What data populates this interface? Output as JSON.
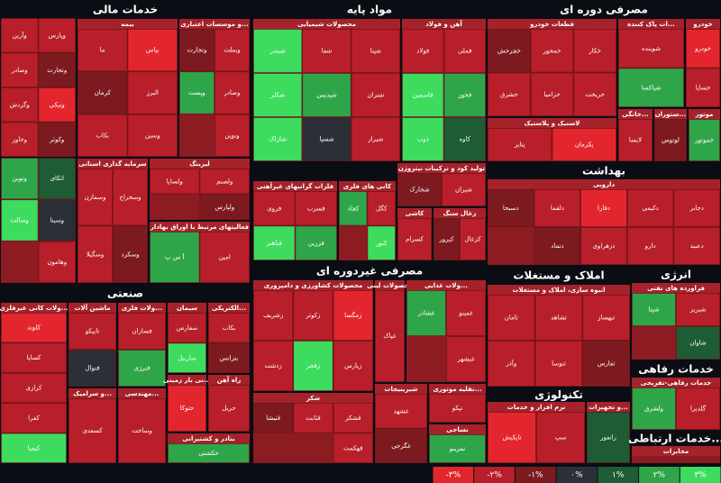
{
  "sectors": [
    {
      "title": "خدمات مالی",
      "groups": [
        {
          "tiles": [
            {
              "name": "وپارس",
              "color": "#b81f2a"
            },
            {
              "name": "وآرین",
              "color": "#b81f2a"
            },
            {
              "name": "وتجارت",
              "color": "#7d1a20"
            },
            {
              "name": "وصادر",
              "color": "#b81f2a"
            },
            {
              "name": "ونیکی",
              "color": "#e3262d"
            },
            {
              "name": "وگردش",
              "color": "#b81f2a"
            },
            {
              "name": "وکوثر",
              "color": "#7d1a20"
            },
            {
              "name": "وخاور",
              "color": "#b81f2a"
            }
          ]
        },
        {
          "tiles": [
            {
              "name": "اتکای",
              "color": "#1d5c34"
            },
            {
              "name": "ونوین",
              "color": "#2fa54a"
            },
            {
              "name": "وسینا",
              "color": "#2b2f36"
            },
            {
              "name": "وسالت",
              "color": "#3ddc5f"
            },
            {
              "name": "وهامون",
              "color": "#b81f2a"
            }
          ]
        },
        {
          "title": "بیمه",
          "tiles": [
            {
              "name": "بپاس",
              "color": "#e3262d"
            },
            {
              "name": "ما",
              "color": "#b81f2a"
            },
            {
              "name": "البرز",
              "color": "#b81f2a"
            },
            {
              "name": "کرمان",
              "color": "#7d1a20"
            },
            {
              "name": "وسین",
              "color": "#b81f2a"
            },
            {
              "name": "بکاب",
              "color": "#b81f2a"
            }
          ]
        },
        {
          "title": "...و موسسات اعتباری",
          "tiles": [
            {
              "name": "وبملت",
              "color": "#b81f2a"
            },
            {
              "name": "وتجارت",
              "color": "#7d1a20"
            },
            {
              "name": "وصادر",
              "color": "#b81f2a"
            },
            {
              "name": "وپست",
              "color": "#2fa54a"
            },
            {
              "name": "ونوین",
              "color": "#b81f2a"
            }
          ]
        },
        {
          "title": "سرمایه گذاری استانی",
          "tiles": [
            {
              "name": "وسخراج",
              "color": "#b81f2a"
            },
            {
              "name": "وسمازن",
              "color": "#b81f2a"
            },
            {
              "name": "وسکرد",
              "color": "#7d1a20"
            },
            {
              "name": "وسگیلا",
              "color": "#b81f2a"
            }
          ]
        },
        {
          "title": "لیزینگ",
          "tiles": [
            {
              "name": "ولصنم",
              "color": "#b81f2a"
            },
            {
              "name": "ولساپا",
              "color": "#b81f2a"
            },
            {
              "name": "ولپارس",
              "color": "#7d1a20"
            }
          ]
        },
        {
          "title": "فعالیتهای مرتبط با اوراق بهادار",
          "tiles": [
            {
              "name": "امین",
              "color": "#b81f2a"
            },
            {
              "name": "آ س پ",
              "color": "#2fa54a"
            }
          ]
        }
      ]
    },
    {
      "title": "مواد پایه",
      "groups": [
        {
          "title": "محصولات شیمیایی",
          "tiles": [
            {
              "name": "شپنا",
              "color": "#b81f2a"
            },
            {
              "name": "شفا",
              "color": "#b81f2a"
            },
            {
              "name": "شبندر",
              "color": "#3ddc5f"
            },
            {
              "name": "شتران",
              "color": "#b81f2a"
            },
            {
              "name": "شپدیس",
              "color": "#2fa54a"
            },
            {
              "name": "شکلر",
              "color": "#3ddc5f"
            },
            {
              "name": "شیراز",
              "color": "#b81f2a"
            },
            {
              "name": "شسپا",
              "color": "#2b2f36"
            },
            {
              "name": "شاراک",
              "color": "#3ddc5f"
            }
          ]
        },
        {
          "title": "آهن و فولاد",
          "tiles": [
            {
              "name": "فملی",
              "color": "#b81f2a"
            },
            {
              "name": "فولاد",
              "color": "#b81f2a"
            },
            {
              "name": "فخوز",
              "color": "#2fa54a"
            },
            {
              "name": "فاسمین",
              "color": "#3ddc5f"
            },
            {
              "name": "کاوه",
              "color": "#1d5c34"
            },
            {
              "name": "ذوب",
              "color": "#3ddc5f"
            }
          ]
        },
        {
          "title": "فلزات گرانبهای غیرآهنی",
          "tiles": [
            {
              "name": "فسرب",
              "color": "#b81f2a"
            },
            {
              "name": "فروی",
              "color": "#b81f2a"
            },
            {
              "name": "فزرین",
              "color": "#2fa54a"
            },
            {
              "name": "فباهنر",
              "color": "#3ddc5f"
            }
          ]
        },
        {
          "title": "کانی های فلزی",
          "tiles": [
            {
              "name": "کگل",
              "color": "#b81f2a"
            },
            {
              "name": "کچاد",
              "color": "#2fa54a"
            },
            {
              "name": "کنور",
              "color": "#3ddc5f"
            }
          ]
        },
        {
          "title": "تولید کود و ترکیبات نیتروژن",
          "tiles": [
            {
              "name": "شیران",
              "color": "#b81f2a"
            },
            {
              "name": "شخارک",
              "color": "#7d1a20"
            }
          ]
        },
        {
          "title": "کاشی",
          "tiles": [
            {
              "name": "کسرام",
              "color": "#b81f2a"
            }
          ]
        },
        {
          "title": "زغال سنگ",
          "tiles": [
            {
              "name": "کزغال",
              "color": "#b81f2a"
            },
            {
              "name": "کپرور",
              "color": "#7d1a20"
            }
          ]
        }
      ]
    },
    {
      "title": "مصرفی دوره ای",
      "groups": [
        {
          "title": "قطعات خودرو",
          "tiles": [
            {
              "name": "خکار",
              "color": "#b81f2a"
            },
            {
              "name": "خمحور",
              "color": "#b81f2a"
            },
            {
              "name": "خچرخش",
              "color": "#7d1a20"
            },
            {
              "name": "خریخت",
              "color": "#b81f2a"
            },
            {
              "name": "خزامیا",
              "color": "#b81f2a"
            },
            {
              "name": "خشرق",
              "color": "#b81f2a"
            }
          ]
        },
        {
          "title": "لاستیک و پلاستیک",
          "tiles": [
            {
              "name": "پکرمان",
              "color": "#e3262d"
            },
            {
              "name": "پتایر",
              "color": "#b81f2a"
            }
          ]
        },
        {
          "title": "...ات پاک کننده",
          "tiles": [
            {
              "name": "شوینده",
              "color": "#b81f2a"
            },
            {
              "name": "شپاکسا",
              "color": "#2fa54a"
            }
          ]
        },
        {
          "title": "خودرو",
          "tiles": [
            {
              "name": "خودرو",
              "color": "#e3262d"
            },
            {
              "name": "خساپا",
              "color": "#b81f2a"
            }
          ]
        },
        {
          "title": "...خانگی",
          "tiles": [
            {
              "name": "لابسا",
              "color": "#b81f2a"
            }
          ]
        },
        {
          "title": "...ستوران",
          "tiles": [
            {
              "name": "لوتوس",
              "color": "#7d1a20"
            }
          ]
        },
        {
          "title": "موتور",
          "tiles": [
            {
              "name": "خموتور",
              "color": "#2fa54a"
            }
          ]
        }
      ]
    },
    {
      "title": "بهداشت",
      "groups": [
        {
          "title": "دارویی",
          "tiles": [
            {
              "name": "دجابر",
              "color": "#b81f2a"
            },
            {
              "name": "دکیمی",
              "color": "#b81f2a"
            },
            {
              "name": "دفارا",
              "color": "#e3262d"
            },
            {
              "name": "دلقما",
              "color": "#b81f2a"
            },
            {
              "name": "دسبحا",
              "color": "#7d1a20"
            },
            {
              "name": "دعبید",
              "color": "#b81f2a"
            },
            {
              "name": "دارو",
              "color": "#b81f2a"
            },
            {
              "name": "دزهراوی",
              "color": "#b81f2a"
            },
            {
              "name": "دتماد",
              "color": "#7d1a20"
            }
          ]
        }
      ]
    },
    {
      "title": "صنعتی",
      "groups": [
        {
          "title": "...ولات کانی غیرفلزی",
          "tiles": [
            {
              "name": "کلوند",
              "color": "#e3262d"
            },
            {
              "name": "کساپا",
              "color": "#b81f2a"
            },
            {
              "name": "کرازی",
              "color": "#b81f2a"
            },
            {
              "name": "کفرا",
              "color": "#b81f2a"
            },
            {
              "name": "کیمیا",
              "color": "#3ddc5f"
            }
          ]
        },
        {
          "title": "ماشین آلات",
          "tiles": [
            {
              "name": "تاپیکو",
              "color": "#b81f2a"
            },
            {
              "name": "فنوال",
              "color": "#2b2f36"
            }
          ]
        },
        {
          "title": "...ولات فلزی",
          "tiles": [
            {
              "name": "فسازان",
              "color": "#b81f2a"
            },
            {
              "name": "فنرژی",
              "color": "#2fa54a"
            }
          ]
        },
        {
          "title": "سیمان",
          "tiles": [
            {
              "name": "سفارس",
              "color": "#b81f2a"
            },
            {
              "name": "ساربیل",
              "color": "#3ddc5f"
            }
          ]
        },
        {
          "title": "...الکتریکی",
          "tiles": [
            {
              "name": "بکاب",
              "color": "#b81f2a"
            },
            {
              "name": "بترانس",
              "color": "#7d1a20"
            }
          ]
        },
        {
          "title": "...و سرامیک",
          "tiles": [
            {
              "name": "کسعدی",
              "color": "#b81f2a"
            }
          ]
        },
        {
          "title": "...مهندسی",
          "tiles": [
            {
              "name": "وساخت",
              "color": "#b81f2a"
            }
          ]
        },
        {
          "title": "...نی بار زمینی",
          "tiles": [
            {
              "name": "حتوکا",
              "color": "#e3262d"
            }
          ]
        },
        {
          "title": "راه آهن",
          "tiles": [
            {
              "name": "حریل",
              "color": "#b81f2a"
            }
          ]
        },
        {
          "title": "بنادر و کشتیرانی",
          "tiles": [
            {
              "name": "حکشتی",
              "color": "#2fa54a"
            }
          ]
        }
      ]
    },
    {
      "title": "مصرفی غیردوره ای",
      "groups": [
        {
          "title": "محصولات کشاورزی و دامپروری",
          "tiles": [
            {
              "name": "زمگسا",
              "color": "#e3262d"
            },
            {
              "name": "زکوثر",
              "color": "#b81f2a"
            },
            {
              "name": "زشریف",
              "color": "#b81f2a"
            },
            {
              "name": "زپارس",
              "color": "#b81f2a"
            },
            {
              "name": "زفجر",
              "color": "#3ddc5f"
            },
            {
              "name": "زدشت",
              "color": "#b81f2a"
            }
          ]
        },
        {
          "title": "شکر",
          "tiles": [
            {
              "name": "قشکر",
              "color": "#b81f2a"
            },
            {
              "name": "قثابت",
              "color": "#b81f2a"
            },
            {
              "name": "قنیشا",
              "color": "#7d1a20"
            },
            {
              "name": "قهکمت",
              "color": "#b81f2a"
            }
          ]
        },
        {
          "title": "محصولات لبنی",
          "tiles": [
            {
              "name": "غپاک",
              "color": "#b81f2a"
            }
          ]
        },
        {
          "title": "...ولات غذایی",
          "tiles": [
            {
              "name": "غمینو",
              "color": "#b81f2a"
            },
            {
              "name": "غشاذر",
              "color": "#2fa54a"
            },
            {
              "name": "غبشهر",
              "color": "#b81f2a"
            }
          ]
        },
        {
          "title": "شیرینیجات",
          "tiles": [
            {
              "name": "غشهد",
              "color": "#b81f2a"
            },
            {
              "name": "غگرجی",
              "color": "#7d1a20"
            }
          ]
        },
        {
          "title": "...نقلیه موتوری",
          "tiles": [
            {
              "name": "تپکو",
              "color": "#b81f2a"
            }
          ]
        },
        {
          "title": "نساجی",
          "tiles": [
            {
              "name": "نمرینو",
              "color": "#2fa54a"
            }
          ]
        }
      ]
    },
    {
      "title": "املاک و مستغلات",
      "groups": [
        {
          "title": "انبوه سازی، املاک و مستغلات",
          "tiles": [
            {
              "name": "ثبهساز",
              "color": "#b81f2a"
            },
            {
              "name": "ثشاهد",
              "color": "#b81f2a"
            },
            {
              "name": "ثامان",
              "color": "#b81f2a"
            },
            {
              "name": "ثفارس",
              "color": "#7d1a20"
            },
            {
              "name": "ثنوسا",
              "color": "#b81f2a"
            },
            {
              "name": "وآذر",
              "color": "#b81f2a"
            }
          ]
        }
      ]
    },
    {
      "title": "انرژی",
      "groups": [
        {
          "title": "فراورده های نفتی",
          "tiles": [
            {
              "name": "شبریز",
              "color": "#b81f2a"
            },
            {
              "name": "شپنا",
              "color": "#2fa54a"
            },
            {
              "name": "شاوان",
              "color": "#1d5c34"
            }
          ]
        }
      ]
    },
    {
      "title": "تکنولوژی",
      "groups": [
        {
          "title": "نرم افزار و خدمات",
          "tiles": [
            {
              "name": "سپ",
              "color": "#b81f2a"
            },
            {
              "name": "تاپکیش",
              "color": "#e3262d"
            }
          ]
        },
        {
          "title": "...و تجهیزات",
          "tiles": [
            {
              "name": "رانفور",
              "color": "#1d5c34"
            }
          ]
        }
      ]
    },
    {
      "title": "خدمات رفاهی",
      "groups": [
        {
          "title": "خدمات رفاهی-تفریحی",
          "tiles": [
            {
              "name": "گلدیرا",
              "color": "#b81f2a"
            },
            {
              "name": "ولشرق",
              "color": "#2fa54a"
            }
          ]
        }
      ]
    },
    {
      "title": "...خدمات ارتباطی",
      "groups": [
        {
          "title": "مخابرات",
          "tiles": []
        }
      ]
    }
  ],
  "legend": [
    {
      "label": "-۳%",
      "color": "#e3262d"
    },
    {
      "label": "-۲%",
      "color": "#b81f2a"
    },
    {
      "label": "-۱%",
      "color": "#7d1a20"
    },
    {
      "label": "۰%",
      "color": "#2b2f36"
    },
    {
      "label": "۱%",
      "color": "#1d5c34"
    },
    {
      "label": "۲%",
      "color": "#2fa54a"
    },
    {
      "label": "۳%",
      "color": "#3ddc5f"
    }
  ]
}
